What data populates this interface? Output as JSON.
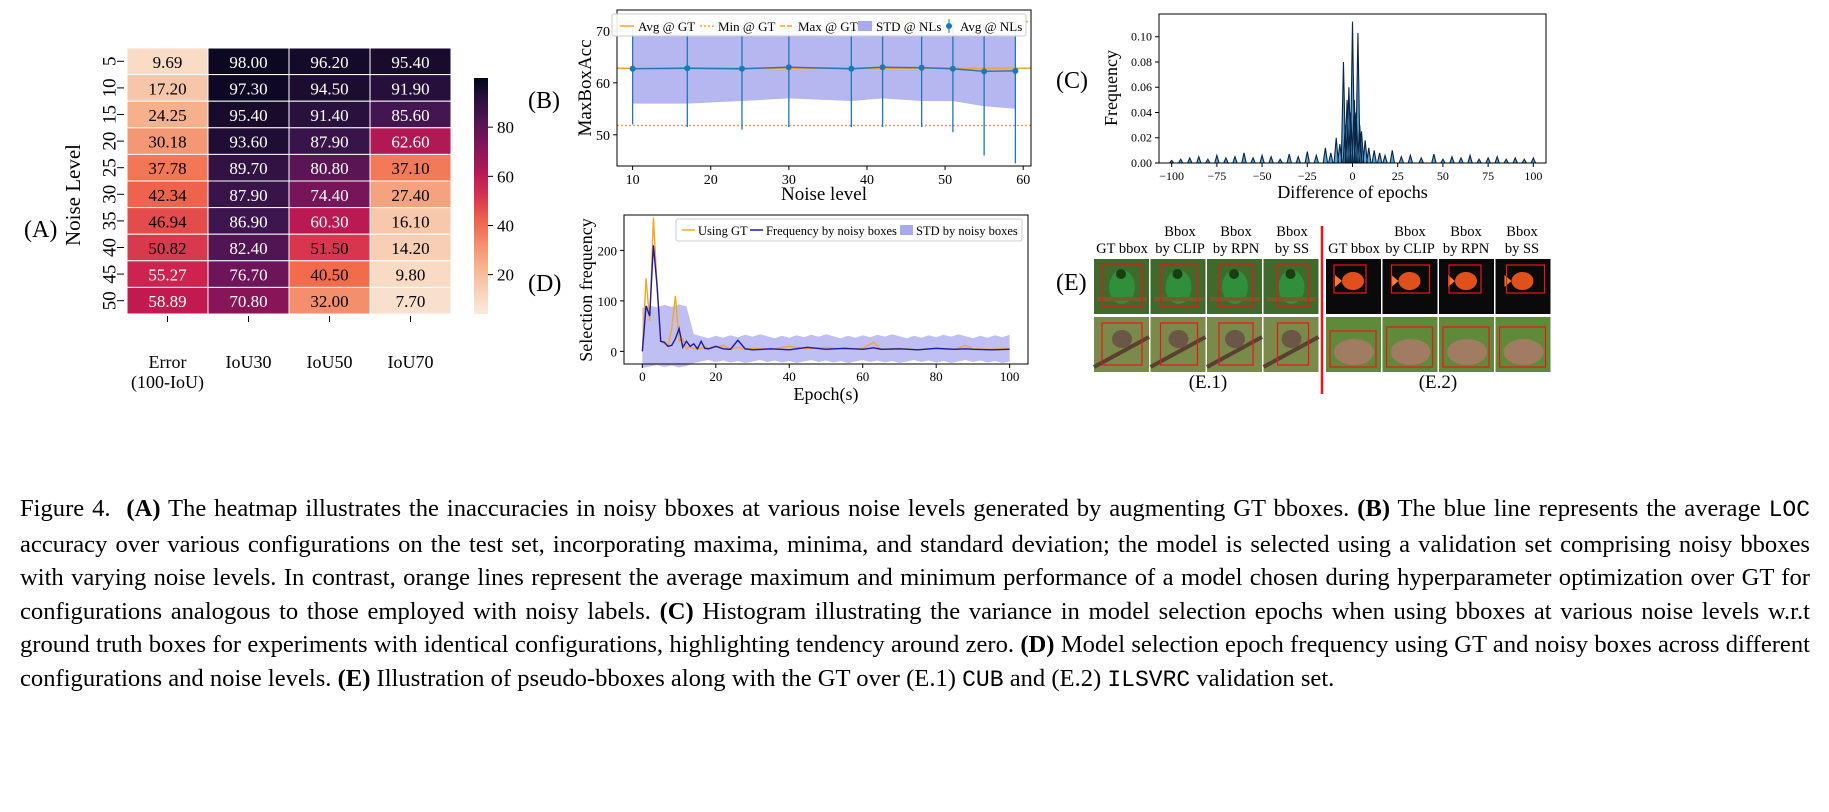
{
  "figure": {
    "panel_labels": {
      "A": "(A)",
      "B": "(B)",
      "C": "(C)",
      "D": "(D)",
      "E": "(E)"
    },
    "e_sublabels": {
      "e1": "(E.1)",
      "e2": "(E.2)"
    },
    "e_headers": [
      {
        "l1": "GT bbox",
        "l2": ""
      },
      {
        "l1": "Bbox",
        "l2": "by CLIP"
      },
      {
        "l1": "Bbox",
        "l2": "by RPN"
      },
      {
        "l1": "Bbox",
        "l2": "by SS"
      }
    ],
    "e_images": [
      {
        "scene": "green bird on branch",
        "bg": "#3f6a2c",
        "subject": "#2f8f3a"
      },
      {
        "scene": "sparrow on branch",
        "bg": "#7a8a4a",
        "subject": "#6b5746"
      },
      {
        "scene": "orange goldfish on black",
        "bg": "#0a0a0a",
        "subject": "#e0501a"
      },
      {
        "scene": "brown animal on grass",
        "bg": "#5f8a3a",
        "subject": "#a07c62"
      }
    ],
    "colors": {
      "orange": "#f5a623",
      "blue": "#1f77b4",
      "navy": "#1a1aa8",
      "fill": "#a9a9ef",
      "red": "#e8161c",
      "hist": "#5aa6d6"
    }
  },
  "caption": {
    "fig": "Figure 4.",
    "a_label": "(A)",
    "a_text": " The heatmap illustrates the inaccuracies in noisy bboxes at various noise levels generated by augmenting GT bboxes.",
    "b_label": "(B)",
    "b_text1": " The blue line represents the average ",
    "loc": "LOC",
    "b_text2": " accuracy over various configurations on the test set, incorporating maxima, minima, and standard deviation; the model is selected using a validation set comprising noisy bboxes with varying noise levels. In contrast, orange lines represent the average maximum and minimum performance of a model chosen during hyperparameter optimization over GT for configurations analogous to those employed with noisy labels. ",
    "c_label": "(C)",
    "c_text": " Histogram illustrating the variance in model selection epochs when using bboxes at various noise levels w.r.t ground truth boxes for experiments with identical configurations, highlighting tendency around zero. ",
    "d_label": "(D)",
    "d_text": " Model selection epoch frequency using GT and noisy boxes across different configurations and noise levels. ",
    "e_label": "(E)",
    "e_text1": " Illustration of pseudo-bboxes along with the GT over (E.1) ",
    "cub": "CUB",
    "e_text2": " and (E.2) ",
    "ilsvrc": "ILSVRC",
    "e_text3": " validation set."
  },
  "chart_data": [
    {
      "id": "A",
      "type": "heatmap",
      "ylabel": "Noise Level",
      "rows": [
        "5",
        "10",
        "15",
        "20",
        "25",
        "30",
        "35",
        "40",
        "45",
        "50"
      ],
      "cols": [
        [
          "Error",
          "(100-IoU)"
        ],
        [
          "IoU30"
        ],
        [
          "IoU50"
        ],
        [
          "IoU70"
        ]
      ],
      "values": [
        [
          9.69,
          98.0,
          96.2,
          95.4
        ],
        [
          17.2,
          97.3,
          94.5,
          91.9
        ],
        [
          24.25,
          95.4,
          91.4,
          85.6
        ],
        [
          30.18,
          93.6,
          87.9,
          62.6
        ],
        [
          37.78,
          89.7,
          80.8,
          37.1
        ],
        [
          42.34,
          87.9,
          74.4,
          27.4
        ],
        [
          46.94,
          86.9,
          60.3,
          16.1
        ],
        [
          50.82,
          82.4,
          51.5,
          14.2
        ],
        [
          55.27,
          76.7,
          40.5,
          9.8
        ],
        [
          58.89,
          70.8,
          32.0,
          7.7
        ]
      ],
      "colorbar_ticks": [
        "80",
        "60",
        "40",
        "20"
      ],
      "colorbar_range": [
        4,
        100
      ]
    },
    {
      "id": "B",
      "type": "line",
      "xlabel": "Noise level",
      "ylabel": "MaxBoxAcc",
      "x": [
        10,
        17,
        24,
        30,
        38,
        42,
        47,
        51,
        55,
        59
      ],
      "mean": [
        62.7,
        62.8,
        62.7,
        63.0,
        62.7,
        63.0,
        62.9,
        62.7,
        62.2,
        62.3
      ],
      "err_low": [
        52.0,
        51.5,
        51.0,
        51.5,
        51.5,
        51.5,
        51.5,
        50.5,
        46.0,
        44.5
      ],
      "err_high": [
        70.5,
        71.5,
        71.5,
        71.5,
        70.5,
        71.5,
        71.5,
        71.5,
        71.5,
        72.0
      ],
      "std_low": [
        56.0,
        56.0,
        56.5,
        57.0,
        56.5,
        57.0,
        56.5,
        56.5,
        55.5,
        55.0
      ],
      "std_high": [
        69.5,
        69.5,
        69.5,
        69.5,
        69.0,
        69.5,
        69.5,
        69.5,
        69.5,
        69.5
      ],
      "avg_gt": 62.8,
      "min_gt": 51.8,
      "max_gt": 71.8,
      "xlim": [
        8,
        61
      ],
      "ylim": [
        44,
        74
      ],
      "xticks": [
        10,
        20,
        30,
        40,
        50,
        60
      ],
      "yticks": [
        50,
        60,
        70
      ],
      "legend": [
        "Avg @ GT",
        "Min @ GT",
        "Max @ GT",
        "STD @ NLs",
        "Avg @ NLs"
      ],
      "legend_position": "top"
    },
    {
      "id": "C",
      "type": "area",
      "xlabel": "Difference of epochs",
      "ylabel": "Frequency",
      "xlim": [
        -107,
        107
      ],
      "ylim": [
        0,
        0.118
      ],
      "xticks": [
        -100,
        -75,
        -50,
        -25,
        0,
        25,
        50,
        75,
        100
      ],
      "xtick_labels": [
        "−100",
        "−75",
        "−50",
        "−25",
        "0",
        "25",
        "50",
        "75",
        "100"
      ],
      "yticks": [
        0.0,
        0.02,
        0.04,
        0.06,
        0.08,
        0.1
      ],
      "ytick_labels": [
        "0.00",
        "0.02",
        "0.04",
        "0.06",
        "0.08",
        "0.10"
      ],
      "peaks": [
        [
          -100,
          0.002
        ],
        [
          -95,
          0.003
        ],
        [
          -90,
          0.004
        ],
        [
          -85,
          0.005
        ],
        [
          -80,
          0.003
        ],
        [
          -75,
          0.006
        ],
        [
          -70,
          0.004
        ],
        [
          -65,
          0.005
        ],
        [
          -60,
          0.008
        ],
        [
          -55,
          0.004
        ],
        [
          -50,
          0.006
        ],
        [
          -45,
          0.005
        ],
        [
          -40,
          0.003
        ],
        [
          -35,
          0.007
        ],
        [
          -30,
          0.005
        ],
        [
          -25,
          0.009
        ],
        [
          -20,
          0.006
        ],
        [
          -15,
          0.012
        ],
        [
          -12,
          0.008
        ],
        [
          -9,
          0.02
        ],
        [
          -7,
          0.015
        ],
        [
          -5,
          0.08
        ],
        [
          -4,
          0.03
        ],
        [
          -3,
          0.05
        ],
        [
          -2,
          0.06
        ],
        [
          -1,
          0.04
        ],
        [
          0,
          0.112
        ],
        [
          1,
          0.05
        ],
        [
          2,
          0.04
        ],
        [
          3,
          0.103
        ],
        [
          4,
          0.03
        ],
        [
          5,
          0.025
        ],
        [
          7,
          0.018
        ],
        [
          9,
          0.012
        ],
        [
          12,
          0.01
        ],
        [
          15,
          0.008
        ],
        [
          18,
          0.006
        ],
        [
          22,
          0.01
        ],
        [
          27,
          0.005
        ],
        [
          32,
          0.006
        ],
        [
          38,
          0.004
        ],
        [
          45,
          0.007
        ],
        [
          50,
          0.003
        ],
        [
          55,
          0.005
        ],
        [
          60,
          0.004
        ],
        [
          65,
          0.006
        ],
        [
          70,
          0.003
        ],
        [
          75,
          0.004
        ],
        [
          80,
          0.005
        ],
        [
          85,
          0.003
        ],
        [
          90,
          0.004
        ],
        [
          95,
          0.003
        ],
        [
          100,
          0.004
        ]
      ]
    },
    {
      "id": "D",
      "type": "line",
      "xlabel": "Epoch(s)",
      "ylabel": "Selection frequency",
      "xlim": [
        -5,
        105
      ],
      "ylim": [
        -25,
        270
      ],
      "xticks": [
        0,
        20,
        40,
        60,
        80,
        100
      ],
      "yticks": [
        0,
        100,
        200
      ],
      "gt_x": [
        0,
        1,
        2,
        3,
        4,
        5,
        6,
        7,
        8,
        9,
        10,
        11,
        12,
        13,
        14,
        15,
        16,
        17,
        18,
        20,
        22,
        24,
        26,
        28,
        30,
        35,
        40,
        45,
        50,
        55,
        60,
        63,
        65,
        70,
        75,
        80,
        85,
        88,
        90,
        95,
        100
      ],
      "gt_y": [
        0,
        145,
        60,
        265,
        130,
        20,
        15,
        10,
        45,
        110,
        20,
        25,
        5,
        10,
        5,
        8,
        5,
        10,
        6,
        8,
        12,
        5,
        8,
        4,
        6,
        4,
        10,
        5,
        8,
        4,
        6,
        18,
        4,
        6,
        3,
        5,
        4,
        12,
        5,
        4,
        6
      ],
      "noisy_x": [
        0,
        1,
        2,
        3,
        4,
        5,
        6,
        7,
        8,
        9,
        10,
        11,
        12,
        13,
        14,
        15,
        16,
        17,
        18,
        20,
        22,
        24,
        26,
        28,
        30,
        35,
        40,
        45,
        50,
        55,
        60,
        63,
        65,
        70,
        75,
        80,
        85,
        88,
        90,
        95,
        100
      ],
      "noisy_y": [
        0,
        90,
        70,
        210,
        130,
        20,
        18,
        10,
        12,
        25,
        45,
        8,
        20,
        10,
        15,
        5,
        20,
        6,
        5,
        10,
        5,
        4,
        22,
        5,
        3,
        5,
        3,
        8,
        4,
        6,
        4,
        7,
        4,
        5,
        3,
        6,
        4,
        5,
        4,
        3,
        4
      ],
      "std_low": -20,
      "std_high": 30,
      "legend": [
        "Using GT",
        "Frequency by noisy boxes",
        "STD by noisy boxes"
      ],
      "legend_position": "top-right"
    }
  ]
}
